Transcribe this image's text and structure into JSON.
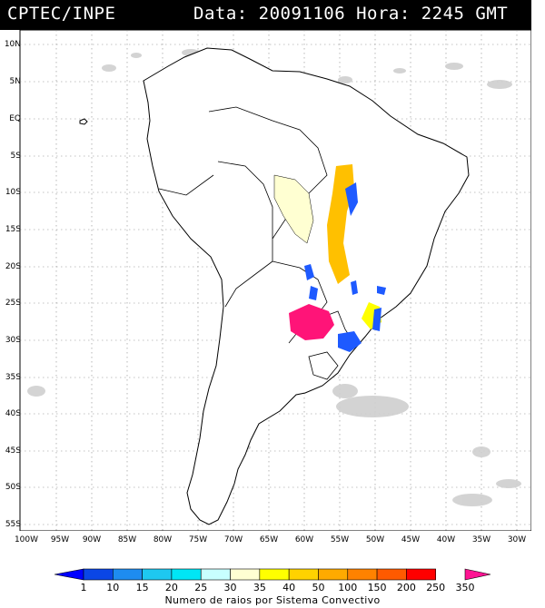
{
  "header": {
    "left": "CPTEC/INPE",
    "right": "Data: 20091106 Hora: 2245 GMT"
  },
  "axes": {
    "lat_labels": [
      "10N",
      "5N",
      "EQ",
      "5S",
      "10S",
      "15S",
      "20S",
      "25S",
      "30S",
      "35S",
      "40S",
      "45S",
      "50S",
      "55S"
    ],
    "lon_labels": [
      "100W",
      "95W",
      "90W",
      "85W",
      "80W",
      "75W",
      "70W",
      "65W",
      "60W",
      "55W",
      "50W",
      "45W",
      "40W",
      "35W",
      "30W"
    ]
  },
  "colorbar": {
    "labels": [
      "1",
      "10",
      "15",
      "20",
      "25",
      "30",
      "35",
      "40",
      "50",
      "100",
      "150",
      "200",
      "250",
      "350"
    ],
    "colors": [
      "#0000ff",
      "#0a46e6",
      "#1e8cf0",
      "#1ec8f0",
      "#00e6f5",
      "#c8ffff",
      "#ffffd2",
      "#ffff00",
      "#ffd200",
      "#ffaa00",
      "#ff8200",
      "#ff5a00",
      "#ff0000",
      "#ff1493"
    ],
    "title": "Numero de raios por Sistema Convectivo"
  }
}
